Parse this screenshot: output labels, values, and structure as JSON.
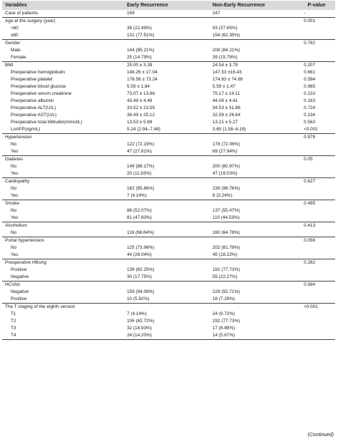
{
  "header": {
    "variables": "Variables",
    "early": "Early Recurrence",
    "non_early": "Non-Early Recurrence",
    "pvalue": "P-value"
  },
  "sections": [
    {
      "rows": [
        [
          "Case of patients",
          "169",
          "247",
          "-"
        ]
      ]
    },
    {
      "rows": [
        [
          "Age at the surgery (year)",
          "",
          "",
          "0.001"
        ],
        [
          ">60",
          "38 (22.49%)",
          "93 (37.65%)",
          ""
        ],
        [
          "≤60",
          "131 (77.51%)",
          "154 (62.35%)",
          ""
        ]
      ]
    },
    {
      "rows": [
        [
          "Gender",
          "",
          "",
          "0.782"
        ],
        [
          "Male",
          "144 (85.21%)",
          "208 (84.21%)",
          ""
        ],
        [
          "Female",
          "25 (14.79%)",
          "39 (15.79%)",
          ""
        ]
      ]
    },
    {
      "rows": [
        [
          "BMI",
          "25.00 ± 3.39",
          "24.54 ± 3.79",
          "0.207"
        ],
        [
          "Preoperative hemoglobulin",
          "148.26 ± 17.04",
          "147.53 ±16.43",
          "0.661"
        ],
        [
          "Preoperative platelet",
          "178.58 ± 73.24",
          "174.63 ± 74.89",
          "0.594"
        ],
        [
          "Preoperative blood glucose",
          "5.59 ± 1.84",
          "5.59 ± 1.47",
          "0.985"
        ],
        [
          "Preoperative serum creatinine",
          "73.07 ± 13.86",
          "75.17 ± 14.11",
          "0.133"
        ],
        [
          "Preoperative albumin",
          "43.49 ± 4.48",
          "44.08 ± 4.41",
          "0.163"
        ],
        [
          "Preoperative ALT(U/L)",
          "33.52 ± 23.55",
          "34.53 ± 31.86",
          "0.724"
        ],
        [
          "Preoperative AST(U/L)",
          "36.49 ± 25.12",
          "32.59 ± 26.64",
          "0.134"
        ],
        [
          "Preoperative total billirubin(mmol/L)",
          "13.53 ± 5.69",
          "13.21 ± 5.27",
          "0.563"
        ],
        [
          "LnAFP(ng/mL)",
          "5.24 (2.94–7.48)",
          "3.60 (1.58–6.18)",
          "<0.001"
        ]
      ]
    },
    {
      "rows": [
        [
          "Hypertension",
          "",
          "",
          "0.978"
        ],
        [
          "No",
          "122 (72.19%)",
          "178 (72.06%)",
          ""
        ],
        [
          "Yes",
          "47 (27.81%)",
          "69 (27.94%)",
          ""
        ]
      ]
    },
    {
      "rows": [
        [
          "Diabetes",
          "",
          "",
          "0.05"
        ],
        [
          "No",
          "149 (88.17%)",
          "200 (80.97%)",
          ""
        ],
        [
          "Yes",
          "20 (11.83%)",
          "47 (19.03%)",
          ""
        ]
      ]
    },
    {
      "rows": [
        [
          "Cardiopathy",
          "",
          "",
          "0.627"
        ],
        [
          "No",
          "162 (95.86%)",
          "239 (96.76%)",
          ""
        ],
        [
          "Yes",
          "7 (4.14%)",
          "8 (3.24%)",
          ""
        ]
      ]
    },
    {
      "rows": [
        [
          "Smoke",
          "",
          "",
          "0.495"
        ],
        [
          "No",
          "88 (52.07%)",
          "137 (55.47%)",
          ""
        ],
        [
          "Yes",
          "81 (47.93%)",
          "110 (44.53%)",
          ""
        ]
      ]
    },
    {
      "rows": [
        [
          "Alcoholism",
          "",
          "",
          "0.413"
        ],
        [
          "No",
          "116 (68.64%)",
          "160 (64.78%)",
          ""
        ]
      ]
    },
    {
      "rows": [
        [
          "Portal hypertension",
          "",
          "",
          "0.056"
        ],
        [
          "No",
          "125 (73.96%)",
          "202 (81.78%)",
          ""
        ],
        [
          "Yes",
          "44 (26.04%)",
          "45 (18.22%)",
          ""
        ]
      ]
    },
    {
      "rows": [
        [
          "Preoperative HBsAg",
          "",
          "",
          "0.262"
        ],
        [
          "Positive",
          "139 (82.25%)",
          "192 (77.73%)",
          ""
        ],
        [
          "Negative",
          "30 (17.75%)",
          "55 (22.27%)",
          ""
        ]
      ]
    },
    {
      "rows": [
        [
          "HCVAb",
          "",
          "",
          "0.584"
        ],
        [
          "Negative",
          "159 (94.08%)",
          "229 (92.71%)",
          ""
        ],
        [
          "Positive",
          "10 (5.92%)",
          "18 (7.29%)",
          ""
        ]
      ]
    },
    {
      "rows": [
        [
          "The T staging of the eighth version",
          "",
          "",
          "<0.001"
        ],
        [
          "T1",
          "7 (4.14%)",
          "24 (9.72%)",
          ""
        ],
        [
          "T2",
          "106 (62.72%)",
          "192 (77.73%)",
          ""
        ],
        [
          "T3",
          "32 (18.93%)",
          "17 (6.88%)",
          ""
        ],
        [
          "T4",
          "24 (14.20%)",
          "14 (5.67%)",
          ""
        ]
      ]
    }
  ],
  "footer": "(Continued)"
}
